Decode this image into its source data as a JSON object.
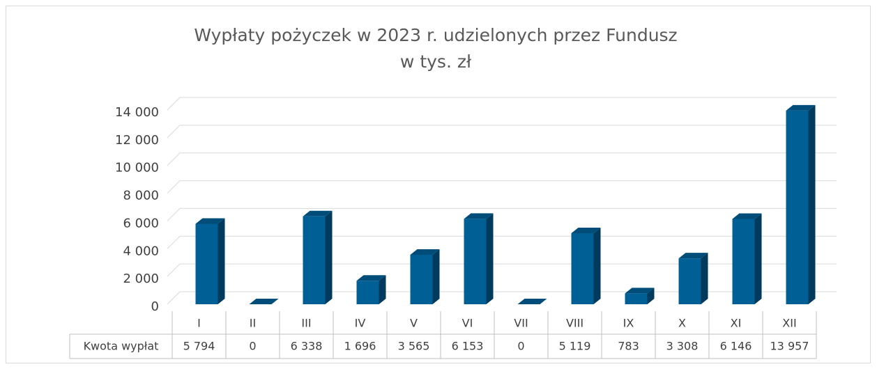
{
  "chart_data": {
    "type": "bar3d",
    "title": "Wypłaty pożyczek w 2023 r. udzielonych przez Fundusz",
    "subtitle": "w tys. zł",
    "categories": [
      "I",
      "II",
      "III",
      "IV",
      "V",
      "VI",
      "VII",
      "VIII",
      "IX",
      "X",
      "XI",
      "XII"
    ],
    "series": [
      {
        "name": "Kwota wypłat",
        "color": "#005f94",
        "values": [
          5794,
          0,
          6338,
          1696,
          3565,
          6153,
          0,
          5119,
          783,
          3308,
          6146,
          13957
        ],
        "value_labels": [
          "5 794",
          "0",
          "6 338",
          "1 696",
          "3 565",
          "6 153",
          "0",
          "5 119",
          "783",
          "3 308",
          "6 146",
          "13 957"
        ]
      }
    ],
    "ylim": [
      0,
      14000
    ],
    "yticks": [
      0,
      {
        "value": 2000,
        "label": "2 000"
      },
      {
        "value": 4000,
        "label": "4 000"
      },
      {
        "value": 6000,
        "label": "6 000"
      },
      {
        "value": 8000,
        "label": "8 000"
      },
      {
        "value": 10000,
        "label": "10 000"
      },
      {
        "value": 12000,
        "label": "12 000"
      },
      {
        "value": 14000,
        "label": "14 000"
      }
    ],
    "grid": true
  }
}
